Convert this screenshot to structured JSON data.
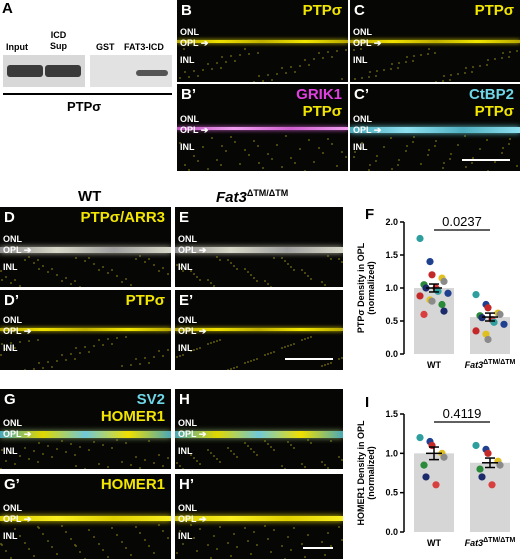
{
  "panelA": {
    "label": "A",
    "lanes": [
      "Input",
      "ICD\nSup",
      "GST",
      "FAT3-ICD"
    ],
    "caption": "PTPσ"
  },
  "panels": {
    "B": {
      "label": "B",
      "stain": [
        "PTPσ"
      ],
      "stainColors": [
        "#f2e600"
      ]
    },
    "C": {
      "label": "C",
      "stain": [
        "PTPσ"
      ],
      "stainColors": [
        "#f2e600"
      ]
    },
    "B2": {
      "label": "B’",
      "stain": [
        "GRIK1",
        "PTPσ"
      ],
      "stainColors": [
        "#e040e0",
        "#f2e600"
      ]
    },
    "C2": {
      "label": "C’",
      "stain": [
        "CtBP2",
        "PTPσ"
      ],
      "stainColors": [
        "#6fd6e8",
        "#f2e600"
      ]
    },
    "D": {
      "label": "D",
      "stain": [
        "PTPσ/ARR3"
      ],
      "stainColors": [
        "#f2e600"
      ]
    },
    "E": {
      "label": "E",
      "stain": [],
      "stainColors": []
    },
    "D2": {
      "label": "D’",
      "stain": [
        "PTPσ"
      ],
      "stainColors": [
        "#f2e600"
      ]
    },
    "E2": {
      "label": "E’",
      "stain": [],
      "stainColors": []
    },
    "G": {
      "label": "G",
      "stain": [
        "SV2",
        "HOMER1"
      ],
      "stainColors": [
        "#6fd6e8",
        "#f2e600"
      ]
    },
    "H": {
      "label": "H",
      "stain": [],
      "stainColors": []
    },
    "G2": {
      "label": "G’",
      "stain": [
        "HOMER1"
      ],
      "stainColors": [
        "#f2e600"
      ]
    },
    "H2": {
      "label": "H’",
      "stain": [],
      "stainColors": []
    }
  },
  "layerLabels": [
    "ONL",
    "OPL",
    "INL"
  ],
  "columnHeaders": {
    "wt": "WT",
    "mutant_base": "Fat3",
    "mutant_sup": "ΔTM/ΔTM"
  },
  "chart_data": [
    {
      "panel": "F",
      "type": "bar",
      "categories": [
        "WT",
        "Fat3ΔTM/ΔTM"
      ],
      "values": [
        1.0,
        0.56
      ],
      "errors": [
        0.06,
        0.06
      ],
      "ylabel": "PTPσ Density in OPL\n(normalized)",
      "ylim": [
        0,
        2.0
      ],
      "yticks": [
        "0.0",
        "0.5",
        "1.0",
        "1.5",
        "2.0"
      ],
      "pvalue": "0.0237",
      "points": [
        {
          "group": 0,
          "values": [
            1.75,
            1.4,
            1.2,
            1.15,
            1.1,
            1.05,
            1.0,
            1.0,
            0.95,
            0.92,
            0.88,
            0.82,
            0.8,
            0.75,
            0.65,
            0.6
          ]
        },
        {
          "group": 1,
          "values": [
            0.9,
            0.75,
            0.7,
            0.62,
            0.6,
            0.58,
            0.55,
            0.52,
            0.48,
            0.45,
            0.35,
            0.3,
            0.22
          ]
        }
      ]
    },
    {
      "panel": "I",
      "type": "bar",
      "categories": [
        "WT",
        "Fat3ΔTM/ΔTM"
      ],
      "values": [
        1.0,
        0.88
      ],
      "errors": [
        0.08,
        0.06
      ],
      "ylabel": "HOMER1 Density in OPL\n(normalized)",
      "ylim": [
        0,
        1.5
      ],
      "yticks": [
        "0.0",
        "0.5",
        "1.0",
        "1.5"
      ],
      "pvalue": "0.4119",
      "points": [
        {
          "group": 0,
          "values": [
            1.2,
            1.15,
            1.1,
            1.0,
            0.95,
            0.85,
            0.7,
            0.6
          ]
        },
        {
          "group": 1,
          "values": [
            1.1,
            1.05,
            1.0,
            0.9,
            0.85,
            0.8,
            0.7,
            0.6
          ]
        }
      ]
    }
  ],
  "pointColors": [
    "#2e9e9e",
    "#1f3f8f",
    "#c42828",
    "#e0c020",
    "#8a8a8a",
    "#2a8a3a",
    "#1a2a6a",
    "#d84040"
  ]
}
